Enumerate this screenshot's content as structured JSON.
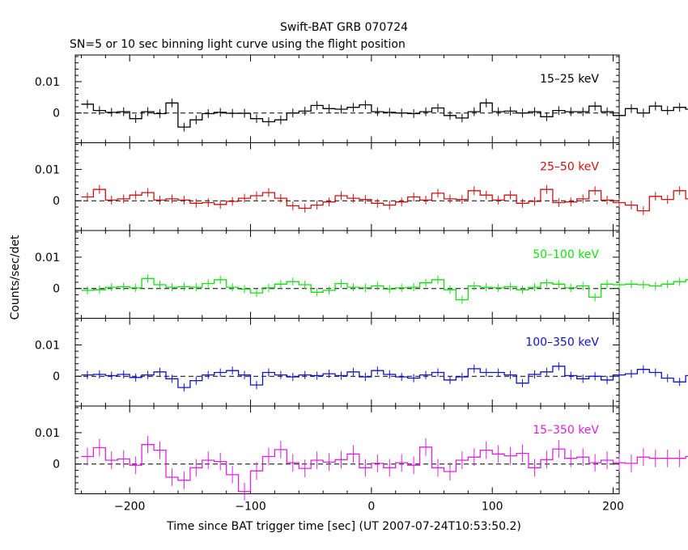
{
  "chart_data": {
    "type": "line",
    "title": "Swift-BAT GRB 070724",
    "subtitle": "SN=5 or 10 sec binning light curve using the flight position",
    "xlabel": "Time since BAT trigger time [sec] (UT 2007-07-24T10:53:50.2)",
    "ylabel": "Counts/sec/det",
    "xlim": [
      -245,
      205
    ],
    "xticks": [
      -200,
      -100,
      0,
      100,
      200
    ],
    "xtick_labels": [
      "−200",
      "−100",
      "0",
      "100",
      "200"
    ],
    "ylim": [
      -0.0095,
      0.0185
    ],
    "yticks": [
      0,
      0.01
    ],
    "ytick_labels": [
      "0",
      "0.01"
    ],
    "grid": false,
    "reference_line": 0,
    "bin_width_sec": 10,
    "bin_start_sec": -240,
    "series": [
      {
        "name": "15–25 keV",
        "color": "#000000",
        "error": 0.0014,
        "values": [
          0.0028,
          0.0008,
          0.0002,
          0.0004,
          -0.0018,
          0.0004,
          -0.0002,
          0.0032,
          -0.0045,
          -0.0022,
          -0.0002,
          0.0002,
          -0.0001,
          -0.0001,
          -0.0018,
          -0.0028,
          -0.0022,
          0.0,
          0.0006,
          0.0024,
          0.0014,
          0.0012,
          0.0018,
          0.0026,
          0.0004,
          0.0002,
          0.0,
          -0.0002,
          0.0004,
          0.0016,
          -0.0008,
          -0.0016,
          0.0004,
          0.0032,
          0.0004,
          0.0006,
          0.0,
          0.0004,
          -0.0012,
          0.0008,
          0.0004,
          0.0004,
          0.0022,
          0.0004,
          -0.0008,
          0.0014,
          0.0,
          0.0022,
          0.0008,
          0.0018,
          0.0012,
          0.0,
          0.0018,
          0.0012,
          0.0006,
          0.0018,
          -0.0022
        ]
      },
      {
        "name": "25–50 keV",
        "color": "#d01010",
        "error": 0.0014,
        "values": [
          0.0012,
          0.0036,
          0.0002,
          0.0006,
          0.0018,
          0.0026,
          0.0002,
          0.0006,
          0.0002,
          -0.0008,
          -0.0006,
          -0.0012,
          -0.0002,
          0.0008,
          0.0016,
          0.0026,
          0.0008,
          -0.0016,
          -0.0024,
          -0.0014,
          -0.0004,
          0.0016,
          0.0008,
          0.0004,
          -0.0008,
          -0.0014,
          -0.0004,
          0.0012,
          0.0002,
          0.0024,
          0.0006,
          0.0004,
          0.0032,
          0.0018,
          0.0002,
          0.0018,
          -0.0008,
          -0.0002,
          0.0036,
          -0.0006,
          -0.0004,
          0.0006,
          0.0032,
          0.0002,
          -0.0006,
          -0.0014,
          -0.0032,
          0.0014,
          0.0004,
          0.0032,
          0.0006,
          0.0002,
          0.0024,
          -0.0004
        ]
      },
      {
        "name": "50–100 keV",
        "color": "#10e010",
        "error": 0.0013,
        "values": [
          -0.0006,
          -0.0004,
          0.0004,
          0.0006,
          0.0002,
          0.0032,
          0.0012,
          0.0004,
          0.0006,
          0.0004,
          0.0016,
          0.0028,
          0.0004,
          -0.0002,
          -0.0014,
          0.0002,
          0.0014,
          0.0022,
          0.0012,
          -0.0012,
          -0.0006,
          0.0016,
          0.0004,
          0.0002,
          0.0008,
          -0.0002,
          0.0002,
          0.0004,
          0.0018,
          0.0028,
          -0.0004,
          -0.0036,
          0.0008,
          0.0004,
          0.0002,
          0.0006,
          -0.0004,
          0.0004,
          0.0018,
          0.0014,
          0.0002,
          0.0008,
          -0.0028,
          0.0014,
          0.0012,
          0.0014,
          0.0012,
          0.0008,
          0.0014,
          0.0022,
          0.0028,
          0.0008,
          0.0032,
          0.0004,
          0.0014
        ]
      },
      {
        "name": "100–350 keV",
        "color": "#1010d0",
        "error": 0.0013,
        "values": [
          0.0004,
          0.0006,
          0.0002,
          0.0006,
          -0.0004,
          0.0004,
          0.0014,
          -0.0008,
          -0.0036,
          -0.0014,
          0.0004,
          0.0012,
          0.0018,
          0.0004,
          -0.0028,
          0.0012,
          0.0004,
          -0.0002,
          0.0004,
          0.0002,
          0.0008,
          0.0002,
          0.0014,
          -0.0002,
          0.0018,
          0.0006,
          -0.0002,
          -0.0006,
          0.0004,
          0.0012,
          -0.0012,
          -0.0002,
          0.0024,
          0.0012,
          0.0012,
          0.0004,
          -0.0022,
          0.0006,
          0.0014,
          0.0032,
          0.0002,
          -0.0008,
          0.0,
          -0.0012,
          0.0004,
          0.0008,
          0.0022,
          0.0012,
          -0.0006,
          -0.0018,
          0.0002,
          -0.0004,
          -0.0006,
          0.0006,
          0.0012
        ]
      },
      {
        "name": "15–350 keV",
        "color": "#e020e0",
        "error": 0.0028,
        "values": [
          0.0024,
          0.0052,
          0.0012,
          0.0016,
          -0.0004,
          0.0062,
          0.0044,
          -0.0042,
          -0.0052,
          -0.0012,
          0.0012,
          0.0008,
          -0.0034,
          -0.0088,
          -0.0022,
          0.0024,
          0.0046,
          0.0004,
          -0.0014,
          0.0012,
          0.0006,
          0.0014,
          0.0032,
          -0.0012,
          0.0002,
          -0.0012,
          0.0004,
          -0.0004,
          0.0054,
          -0.0012,
          -0.0024,
          0.0012,
          0.0022,
          0.0044,
          0.0032,
          0.0026,
          0.0034,
          -0.0012,
          0.0014,
          0.0048,
          0.0018,
          0.0022,
          0.0004,
          0.0012,
          0.0004,
          0.0002,
          0.0022,
          0.0018,
          0.0018,
          0.0018,
          0.0024,
          0.0012,
          0.0024,
          0.0004
        ]
      }
    ]
  }
}
